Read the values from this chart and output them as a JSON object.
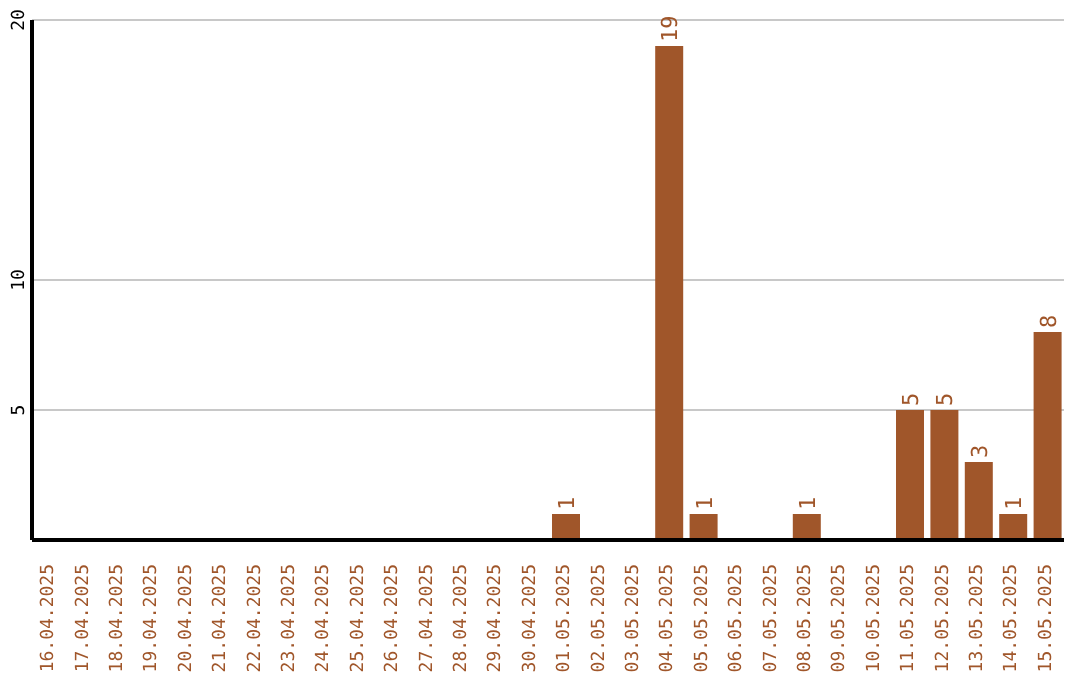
{
  "chart_data": {
    "type": "bar",
    "categories": [
      "16.04.2025",
      "17.04.2025",
      "18.04.2025",
      "19.04.2025",
      "20.04.2025",
      "21.04.2025",
      "22.04.2025",
      "23.04.2025",
      "24.04.2025",
      "25.04.2025",
      "26.04.2025",
      "27.04.2025",
      "28.04.2025",
      "29.04.2025",
      "30.04.2025",
      "01.05.2025",
      "02.05.2025",
      "03.05.2025",
      "04.05.2025",
      "05.05.2025",
      "06.05.2025",
      "07.05.2025",
      "08.05.2025",
      "09.05.2025",
      "10.05.2025",
      "11.05.2025",
      "12.05.2025",
      "13.05.2025",
      "14.05.2025",
      "15.05.2025"
    ],
    "values": [
      0,
      0,
      0,
      0,
      0,
      0,
      0,
      0,
      0,
      0,
      0,
      0,
      0,
      0,
      0,
      1,
      0,
      0,
      19,
      1,
      0,
      0,
      1,
      0,
      0,
      5,
      5,
      3,
      1,
      8
    ],
    "value_labels": [
      null,
      null,
      null,
      null,
      null,
      null,
      null,
      null,
      null,
      null,
      null,
      null,
      null,
      null,
      null,
      "1",
      null,
      null,
      "19",
      "1",
      null,
      null,
      "1",
      null,
      null,
      "5",
      "5",
      "3",
      "1",
      "8"
    ],
    "color": "#a0562a",
    "ylim": [
      0,
      20
    ],
    "yticks": [
      5,
      10,
      20
    ],
    "grid": "y"
  }
}
